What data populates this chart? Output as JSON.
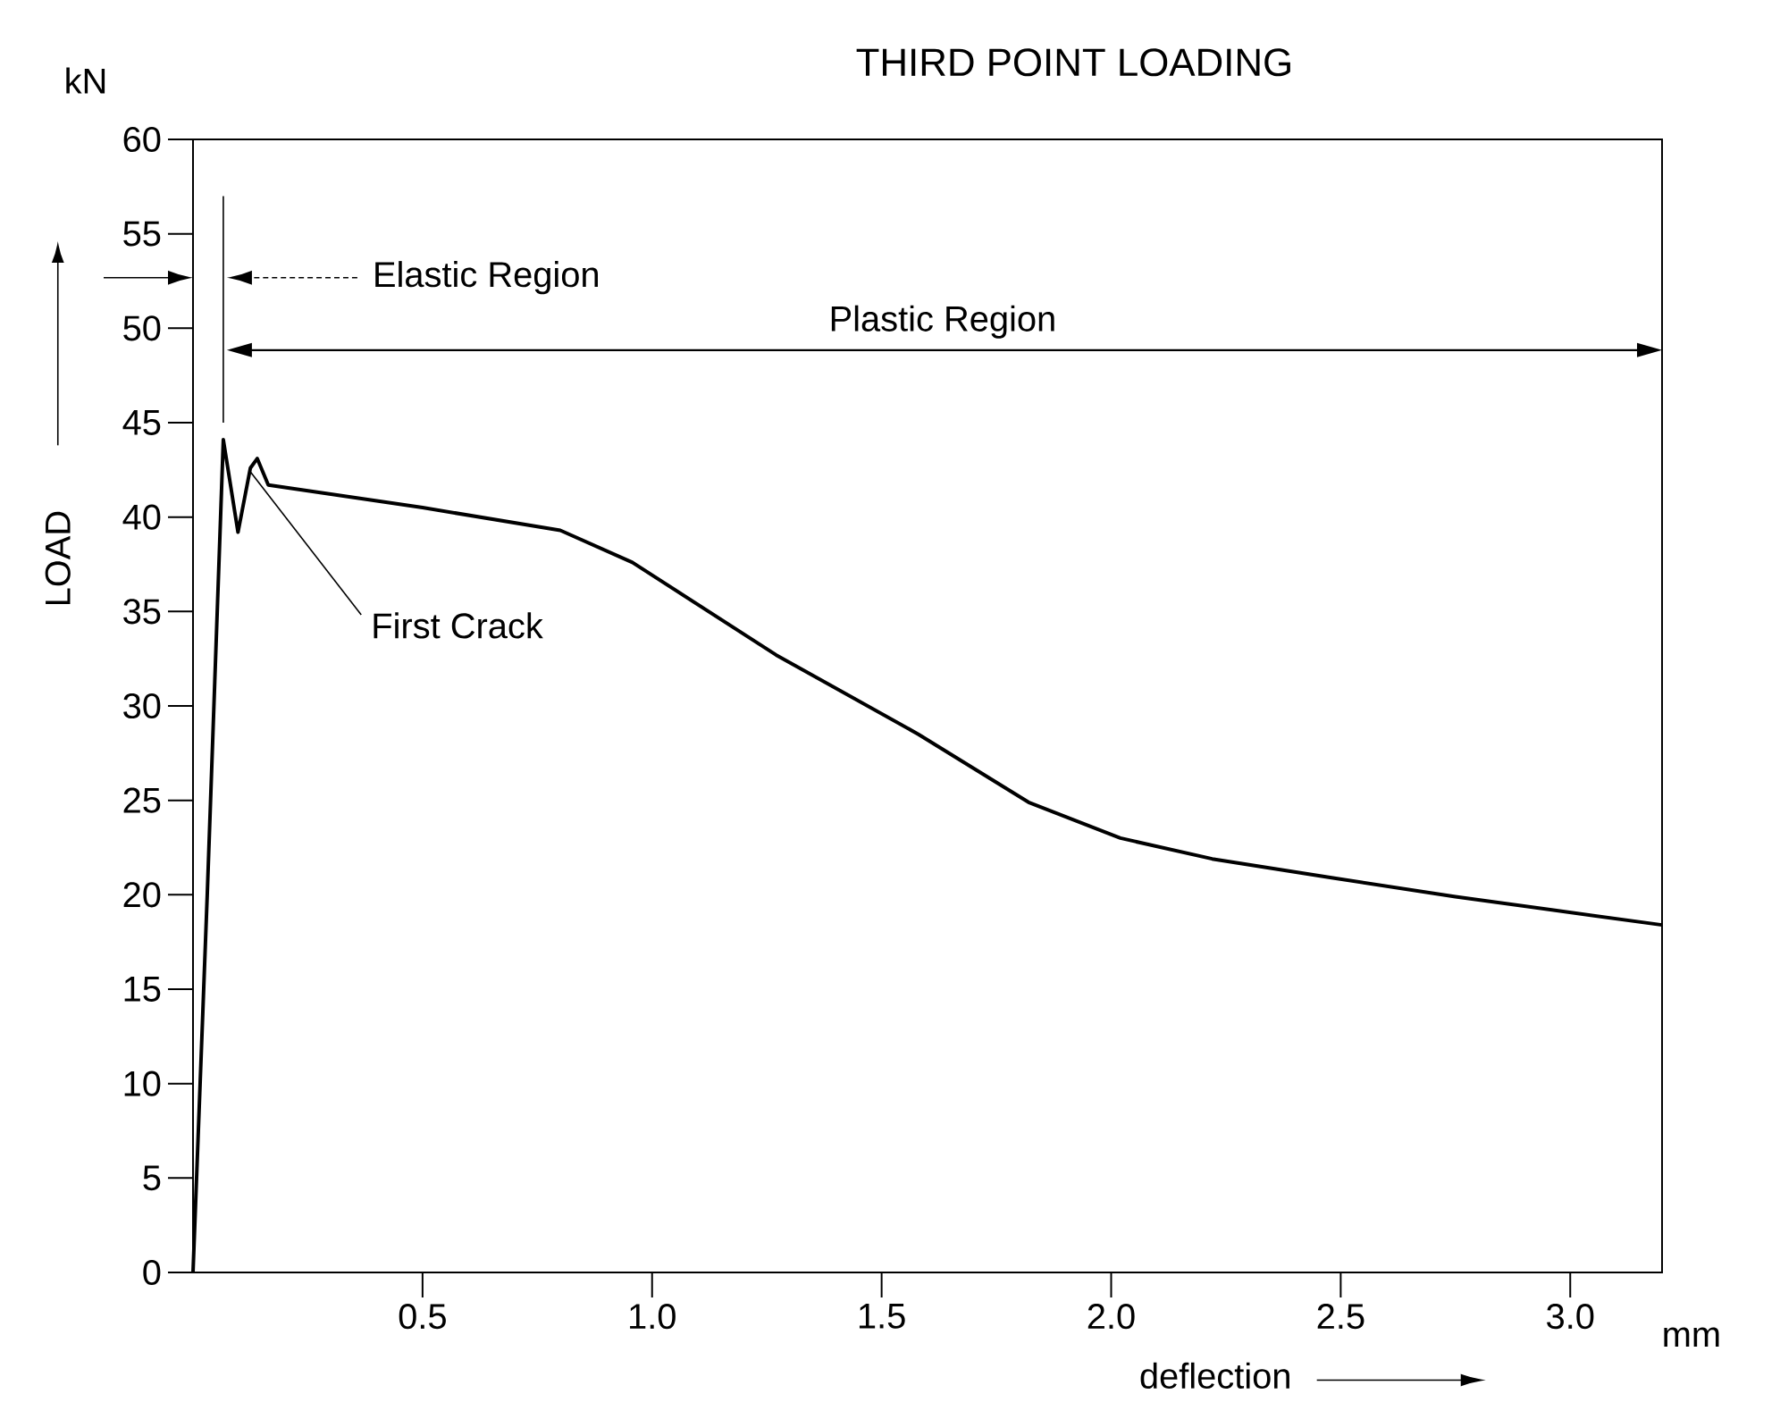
{
  "chart_data": {
    "type": "line",
    "title": "THIRD POINT LOADING",
    "xlabel": "deflection",
    "ylabel": "LOAD",
    "annotations": [
      "kN",
      "mm",
      "Elastic Region",
      "Plastic Region",
      {
        "text": "First Crack",
        "x": 0.125,
        "y": 42.4
      }
    ],
    "series": [
      {
        "color": "#000000",
        "x": [
          0,
          0.031,
          0.066,
          0.098,
          0.125,
          0.14,
          0.164,
          0.5,
          0.8,
          0.957,
          1.27,
          1.58,
          1.82,
          2.02,
          2.22,
          2.48,
          2.75,
          3.2
        ],
        "values": [
          0,
          20,
          44.1,
          39.2,
          42.6,
          43.1,
          41.7,
          40.5,
          39.3,
          37.6,
          32.7,
          28.5,
          24.9,
          23.0,
          21.9,
          20.9,
          19.9,
          18.4
        ]
      }
    ],
    "xlim": [
      0,
      3.2
    ],
    "ylim": [
      0,
      60
    ],
    "xticks": [
      0.5,
      {
        "value": 1,
        "label": "1.0"
      },
      1.5,
      {
        "value": 2,
        "label": "2.0"
      },
      2.5,
      {
        "value": 3,
        "label": "3.0"
      }
    ],
    "yticks": [
      0,
      5,
      10,
      15,
      20,
      25,
      30,
      35,
      40,
      45,
      50,
      55,
      60
    ],
    "ref_lines": [
      {
        "axis": "x",
        "value": 0.066
      }
    ],
    "grid": false,
    "marker": "none",
    "line_style": "solid"
  }
}
